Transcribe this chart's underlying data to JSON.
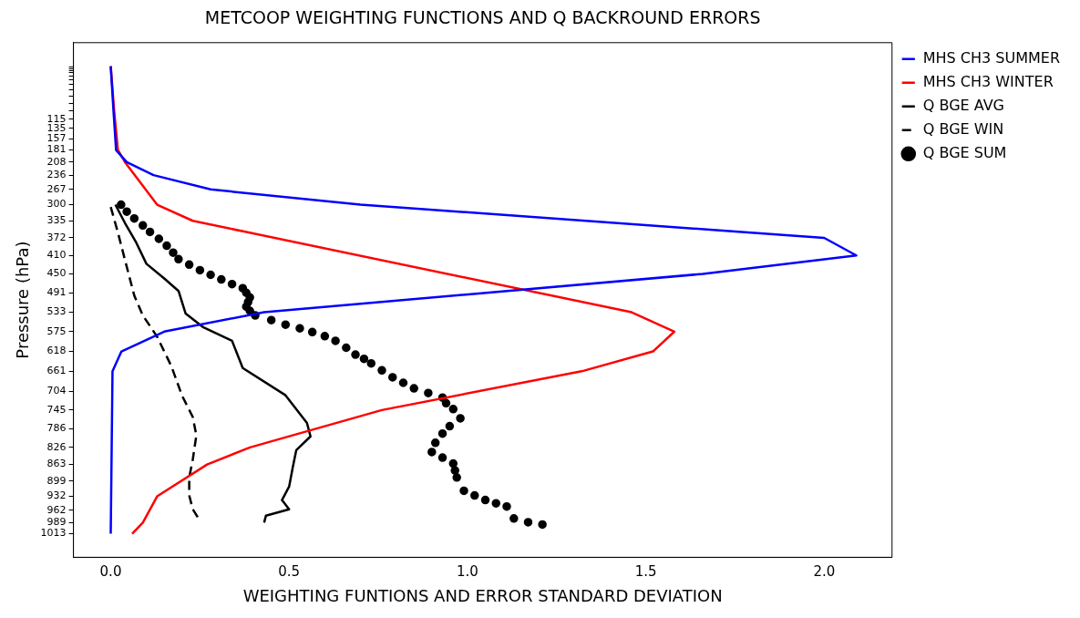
{
  "chart_data": {
    "type": "line",
    "title": "METCOOP WEIGHTING FUNCTIONS AND Q BACKROUND ERRORS",
    "xlabel": "WEIGHTING FUNTIONS AND ERROR STANDARD DEVIATION",
    "ylabel": "Pressure (hPa)",
    "xlim": [
      -0.1045,
      2.19
    ],
    "xticks": [
      {
        "value": 0,
        "label": "0.0"
      },
      {
        "value": 0.5,
        "label": "0.5"
      },
      {
        "value": 1,
        "label": "1.0"
      },
      {
        "value": 1.5,
        "label": "1.5"
      },
      {
        "value": 2,
        "label": "2.0"
      }
    ],
    "ylim": [
      1064,
      -51
    ],
    "yticks": [
      1013,
      989,
      962,
      932,
      899,
      863,
      826,
      786,
      745,
      704,
      661,
      618,
      575,
      533,
      491,
      450,
      410,
      372,
      335,
      300,
      267,
      236,
      208,
      181,
      157,
      135,
      115,
      {
        "value": 97,
        "label": null
      },
      {
        "value": 80,
        "label": null
      },
      {
        "value": 65,
        "label": null
      },
      {
        "value": 52,
        "label": null
      },
      {
        "value": 40,
        "label": null
      },
      {
        "value": 30,
        "label": null
      },
      {
        "value": 21,
        "label": null
      },
      {
        "value": 14,
        "label": null
      },
      {
        "value": 9,
        "label": null
      },
      {
        "value": 5,
        "label": null
      },
      {
        "value": 2,
        "label": null
      }
    ],
    "grid": false,
    "legend": "top right",
    "series": [
      {
        "name": "MHS CH3 SUMMER",
        "color": "#0000ff",
        "line_style": "solid",
        "marker": "none",
        "x": [
          0,
          0.008,
          0.015,
          0.045,
          0.12,
          0.28,
          0.7,
          2.0,
          2.09,
          1.66,
          0.43,
          0.15,
          0.03,
          0.005,
          0
        ],
        "values": [
          0,
          100,
          182,
          208,
          236,
          267,
          300,
          372,
          410,
          450,
          533,
          575,
          618,
          661,
          1013
        ]
      },
      {
        "name": "MHS CH3 WINTER",
        "color": "#ff0000",
        "line_style": "solid",
        "marker": "none",
        "x": [
          0,
          0.01,
          0.02,
          0.04,
          0.13,
          0.23,
          1.46,
          1.58,
          1.52,
          1.32,
          0.76,
          0.39,
          0.27,
          0.13,
          0.09,
          0.06
        ],
        "values": [
          0,
          100,
          181,
          208,
          300,
          335,
          533,
          575,
          618,
          661,
          745,
          826,
          863,
          932,
          989,
          1013
        ]
      },
      {
        "name": "Q BGE AVG",
        "color": "#000000",
        "line_style": "solid",
        "marker": "none",
        "x": [
          0.013,
          0.04,
          0.07,
          0.1,
          0.15,
          0.19,
          0.21,
          0.26,
          0.34,
          0.37,
          0.49,
          0.55,
          0.56,
          0.52,
          0.51,
          0.5,
          0.48,
          0.5,
          0.435,
          0.43
        ],
        "values": [
          300,
          340,
          380,
          428,
          460,
          487,
          536,
          566,
          595,
          654,
          713,
          773,
          802,
          832,
          870,
          911,
          940,
          960,
          974,
          989
        ]
      },
      {
        "name": "Q BGE WIN",
        "color": "#000000",
        "line_style": "dashed",
        "marker": "none",
        "x": [
          0.0,
          0.02,
          0.04,
          0.066,
          0.09,
          0.13,
          0.17,
          0.2,
          0.23,
          0.24,
          0.23,
          0.22,
          0.22,
          0.23,
          0.25
        ],
        "values": [
          305,
          360,
          420,
          497,
          540,
          586,
          650,
          714,
          760,
          800,
          852,
          891,
          930,
          960,
          985
        ]
      },
      {
        "name": "Q BGE SUM",
        "type": "scatter",
        "color": "#000000",
        "marker": "circle",
        "x": [
          0.029,
          0.045,
          0.066,
          0.09,
          0.11,
          0.135,
          0.157,
          0.175,
          0.19,
          0.22,
          0.25,
          0.28,
          0.31,
          0.34,
          0.37,
          0.38,
          0.39,
          0.385,
          0.38,
          0.39,
          0.405,
          0.45,
          0.49,
          0.53,
          0.565,
          0.6,
          0.63,
          0.66,
          0.686,
          0.71,
          0.73,
          0.76,
          0.79,
          0.82,
          0.85,
          0.89,
          0.93,
          0.94,
          0.96,
          0.98,
          0.95,
          0.93,
          0.91,
          0.9,
          0.93,
          0.96,
          0.965,
          0.97,
          0.99,
          1.02,
          1.05,
          1.08,
          1.11,
          1.13,
          1.17,
          1.21
        ],
        "values": [
          300,
          315,
          330,
          345,
          359,
          374,
          389,
          404,
          418,
          430,
          442,
          452,
          462,
          472,
          481,
          491,
          501,
          511,
          521,
          530,
          540,
          550,
          560,
          568,
          576,
          585,
          595,
          610,
          625,
          634,
          644,
          659,
          674,
          686,
          698,
          708,
          718,
          730,
          743,
          763,
          780,
          796,
          816,
          836,
          848,
          861,
          876,
          891,
          920,
          930,
          940,
          947,
          954,
          980,
          988,
          993
        ]
      }
    ]
  }
}
